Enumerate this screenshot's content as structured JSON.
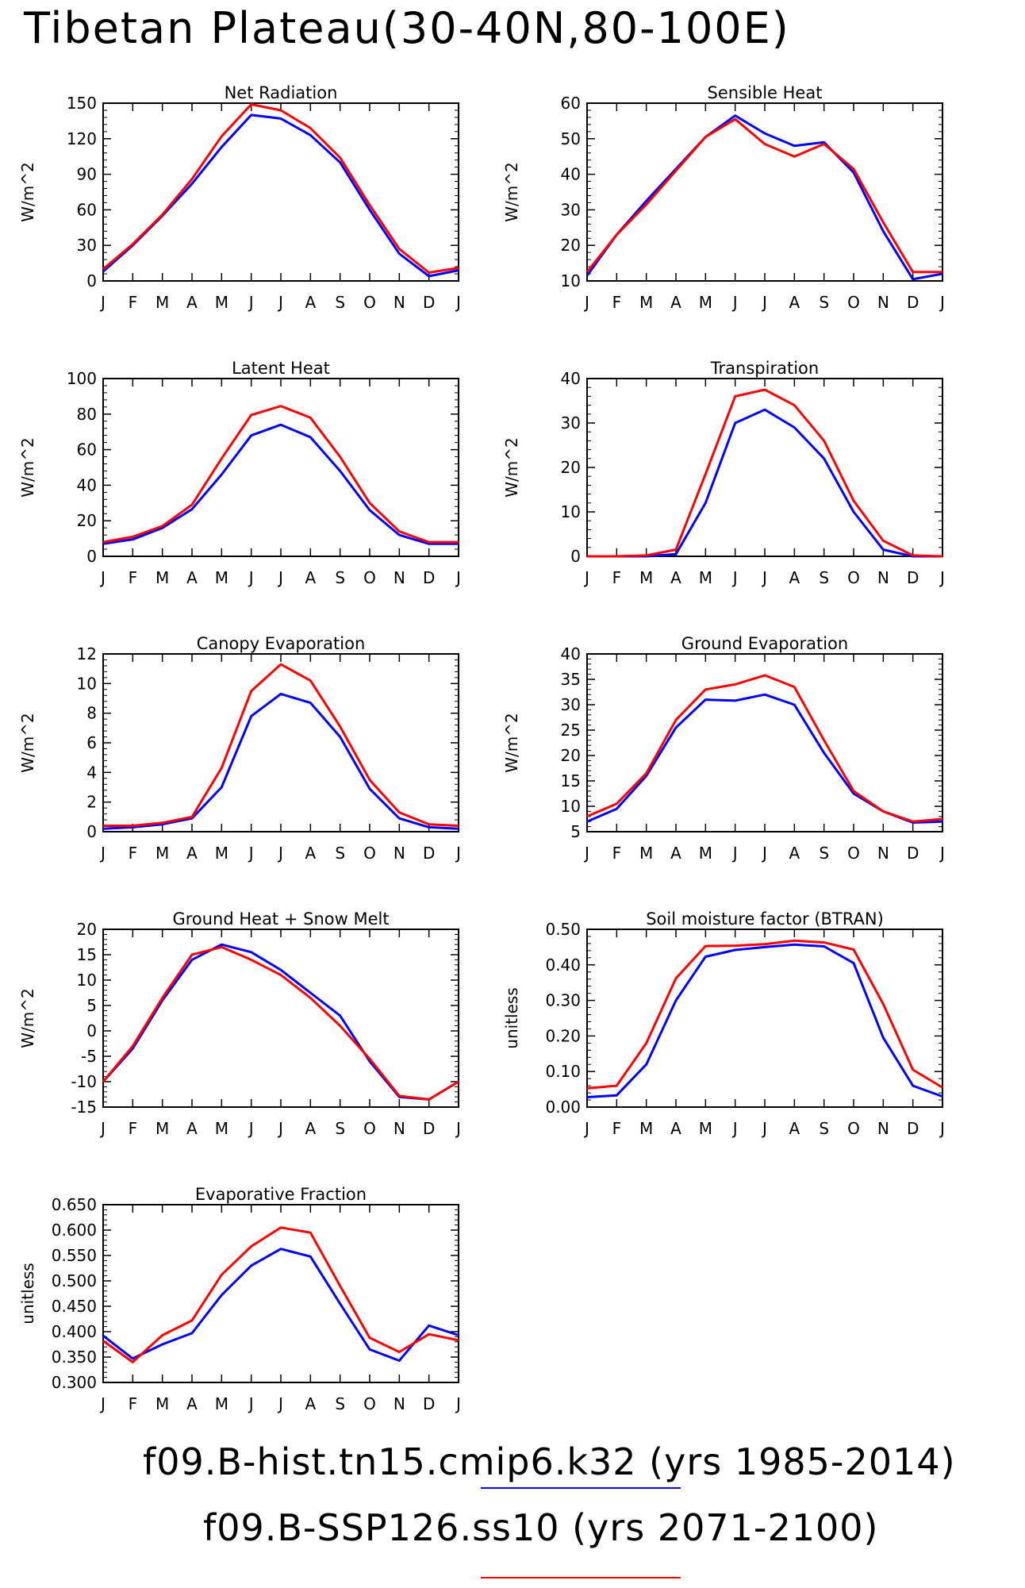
{
  "title": "Tibetan Plateau(30-40N,80-100E)",
  "months": [
    "J",
    "F",
    "M",
    "A",
    "M",
    "J",
    "J",
    "A",
    "S",
    "O",
    "N",
    "D",
    "J"
  ],
  "legend": [
    {
      "label": "f09.B-hist.tn15.cmip6.k32 (yrs 1985-2014)",
      "color": "#0000ff"
    },
    {
      "label": "f09.B-SSP126.ss10 (yrs 2071-2100)",
      "color": "#ff0000"
    }
  ],
  "colors": {
    "hist": "#0000ff",
    "ssp": "#ff0000"
  },
  "chart_data": [
    {
      "type": "line",
      "title": "Net Radiation",
      "ylabel": "W/m^2",
      "ylim": [
        0,
        150
      ],
      "yticks": [
        "0",
        "30",
        "60",
        "90",
        "120",
        "150"
      ],
      "ytick_values": [
        0,
        30,
        60,
        90,
        120,
        150
      ],
      "categories": [
        "J",
        "F",
        "M",
        "A",
        "M",
        "J",
        "J",
        "A",
        "S",
        "O",
        "N",
        "D",
        "J"
      ],
      "series": [
        {
          "color": "#0000ff",
          "values": [
            8,
            30,
            55,
            82,
            113,
            140,
            137,
            123,
            100,
            60,
            23,
            4,
            9
          ]
        },
        {
          "color": "#ff0000",
          "values": [
            10,
            31,
            56,
            86,
            122,
            149,
            144,
            129,
            104,
            64,
            27,
            7,
            11
          ]
        }
      ]
    },
    {
      "type": "line",
      "title": "Sensible Heat",
      "ylabel": "W/m^2",
      "ylim": [
        10,
        60
      ],
      "yticks": [
        "10",
        "20",
        "30",
        "40",
        "50",
        "60"
      ],
      "ytick_values": [
        10,
        20,
        30,
        40,
        50,
        60
      ],
      "categories": [
        "J",
        "F",
        "M",
        "A",
        "M",
        "J",
        "J",
        "A",
        "S",
        "O",
        "N",
        "D",
        "J"
      ],
      "series": [
        {
          "color": "#0000ff",
          "values": [
            11.5,
            23,
            32.5,
            41.5,
            50.5,
            56.5,
            51.5,
            48,
            49,
            40.5,
            24,
            10.5,
            12
          ]
        },
        {
          "color": "#ff0000",
          "values": [
            12.5,
            23,
            31.5,
            41,
            50.5,
            55.5,
            48.5,
            45,
            48.5,
            41.5,
            26.5,
            12.5,
            12.5
          ]
        }
      ]
    },
    {
      "type": "line",
      "title": "Latent Heat",
      "ylabel": "W/m^2",
      "ylim": [
        0,
        100
      ],
      "yticks": [
        "0",
        "20",
        "40",
        "60",
        "80",
        "100"
      ],
      "ytick_values": [
        0,
        20,
        40,
        60,
        80,
        100
      ],
      "categories": [
        "J",
        "F",
        "M",
        "A",
        "M",
        "J",
        "J",
        "A",
        "S",
        "O",
        "N",
        "D",
        "J"
      ],
      "series": [
        {
          "color": "#0000ff",
          "values": [
            7,
            9.5,
            16,
            26.5,
            46,
            68,
            74,
            67,
            48,
            26,
            12,
            7,
            7
          ]
        },
        {
          "color": "#ff0000",
          "values": [
            8,
            11,
            17,
            29,
            55,
            79.5,
            84.5,
            78,
            56,
            30,
            14,
            8,
            8
          ]
        }
      ]
    },
    {
      "type": "line",
      "title": "Transpiration",
      "ylabel": "W/m^2",
      "ylim": [
        0,
        40
      ],
      "yticks": [
        "0",
        "10",
        "20",
        "30",
        "40"
      ],
      "ytick_values": [
        0,
        10,
        20,
        30,
        40
      ],
      "categories": [
        "J",
        "F",
        "M",
        "A",
        "M",
        "J",
        "J",
        "A",
        "S",
        "O",
        "N",
        "D",
        "J"
      ],
      "series": [
        {
          "color": "#0000ff",
          "values": [
            0,
            0,
            0,
            0.5,
            12,
            30,
            33,
            29,
            22,
            10,
            1.5,
            0,
            0
          ]
        },
        {
          "color": "#ff0000",
          "values": [
            0,
            0,
            0.2,
            1.5,
            18.5,
            36,
            37.5,
            34,
            26,
            12.5,
            3.5,
            0.2,
            0
          ]
        }
      ]
    },
    {
      "type": "line",
      "title": "Canopy Evaporation",
      "ylabel": "W/m^2",
      "ylim": [
        0,
        12
      ],
      "yticks": [
        "0",
        "2",
        "4",
        "6",
        "8",
        "10",
        "12"
      ],
      "ytick_values": [
        0,
        2,
        4,
        6,
        8,
        10,
        12
      ],
      "categories": [
        "J",
        "F",
        "M",
        "A",
        "M",
        "J",
        "J",
        "A",
        "S",
        "O",
        "N",
        "D",
        "J"
      ],
      "series": [
        {
          "color": "#0000ff",
          "values": [
            0.2,
            0.3,
            0.5,
            0.9,
            3,
            7.8,
            9.3,
            8.7,
            6.4,
            2.9,
            0.9,
            0.3,
            0.2
          ]
        },
        {
          "color": "#ff0000",
          "values": [
            0.4,
            0.4,
            0.6,
            1,
            4.3,
            9.5,
            11.3,
            10.2,
            7.1,
            3.5,
            1.3,
            0.5,
            0.4
          ]
        }
      ]
    },
    {
      "type": "line",
      "title": "Ground Evaporation",
      "ylabel": "W/m^2",
      "ylim": [
        5,
        40
      ],
      "yticks": [
        "5",
        "10",
        "15",
        "20",
        "25",
        "30",
        "35",
        "40"
      ],
      "ytick_values": [
        5,
        10,
        15,
        20,
        25,
        30,
        35,
        40
      ],
      "categories": [
        "J",
        "F",
        "M",
        "A",
        "M",
        "J",
        "J",
        "A",
        "S",
        "O",
        "N",
        "D",
        "J"
      ],
      "series": [
        {
          "color": "#0000ff",
          "values": [
            7,
            9.5,
            16,
            25.5,
            31,
            30.8,
            32,
            30,
            20.5,
            12.5,
            9,
            6.8,
            7
          ]
        },
        {
          "color": "#ff0000",
          "values": [
            8,
            10.5,
            16.5,
            27,
            33,
            34,
            35.8,
            33.5,
            23,
            13,
            9,
            7,
            7.5
          ]
        }
      ]
    },
    {
      "type": "line",
      "title": "Ground Heat + Snow Melt",
      "ylabel": "W/m^2",
      "ylim": [
        -15,
        20
      ],
      "yticks": [
        "-15",
        "-10",
        "-5",
        "0",
        "5",
        "10",
        "15",
        "20"
      ],
      "ytick_values": [
        -15,
        -10,
        -5,
        0,
        5,
        10,
        15,
        20
      ],
      "categories": [
        "J",
        "F",
        "M",
        "A",
        "M",
        "J",
        "J",
        "A",
        "S",
        "O",
        "N",
        "D",
        "J"
      ],
      "series": [
        {
          "color": "#0000ff",
          "values": [
            -10,
            -3.5,
            6,
            14,
            17,
            15.5,
            12,
            7.5,
            3,
            -6,
            -13,
            -13.5,
            -10
          ]
        },
        {
          "color": "#ff0000",
          "values": [
            -10,
            -3,
            6.5,
            15,
            16.5,
            14,
            11,
            6.5,
            1,
            -5.5,
            -12.8,
            -13.5,
            -10
          ]
        }
      ]
    },
    {
      "type": "line",
      "title": "Soil moisture factor (BTRAN)",
      "ylabel": "unitless",
      "ylim": [
        0,
        0.5
      ],
      "yticks": [
        "0.00",
        "0.10",
        "0.20",
        "0.30",
        "0.40",
        "0.50"
      ],
      "ytick_values": [
        0,
        0.1,
        0.2,
        0.3,
        0.4,
        0.5
      ],
      "categories": [
        "J",
        "F",
        "M",
        "A",
        "M",
        "J",
        "J",
        "A",
        "S",
        "O",
        "N",
        "D",
        "J"
      ],
      "series": [
        {
          "color": "#0000ff",
          "values": [
            0.028,
            0.033,
            0.12,
            0.3,
            0.423,
            0.442,
            0.45,
            0.457,
            0.452,
            0.405,
            0.195,
            0.06,
            0.03
          ]
        },
        {
          "color": "#ff0000",
          "values": [
            0.053,
            0.06,
            0.18,
            0.362,
            0.453,
            0.454,
            0.458,
            0.468,
            0.463,
            0.443,
            0.29,
            0.105,
            0.055
          ]
        }
      ]
    },
    {
      "type": "line",
      "title": "Evaporative Fraction",
      "ylabel": "unitless",
      "ylim": [
        0.3,
        0.65
      ],
      "yticks": [
        "0.300",
        "0.350",
        "0.400",
        "0.450",
        "0.500",
        "0.550",
        "0.600",
        "0.650"
      ],
      "ytick_values": [
        0.3,
        0.35,
        0.4,
        0.45,
        0.5,
        0.55,
        0.6,
        0.65
      ],
      "categories": [
        "J",
        "F",
        "M",
        "A",
        "M",
        "J",
        "J",
        "A",
        "S",
        "O",
        "N",
        "D",
        "J"
      ],
      "series": [
        {
          "color": "#0000ff",
          "values": [
            0.392,
            0.347,
            0.375,
            0.397,
            0.472,
            0.53,
            0.563,
            0.548,
            0.455,
            0.365,
            0.343,
            0.412,
            0.393
          ]
        },
        {
          "color": "#ff0000",
          "values": [
            0.382,
            0.34,
            0.393,
            0.422,
            0.512,
            0.568,
            0.605,
            0.595,
            0.49,
            0.388,
            0.36,
            0.395,
            0.383
          ]
        }
      ]
    }
  ]
}
